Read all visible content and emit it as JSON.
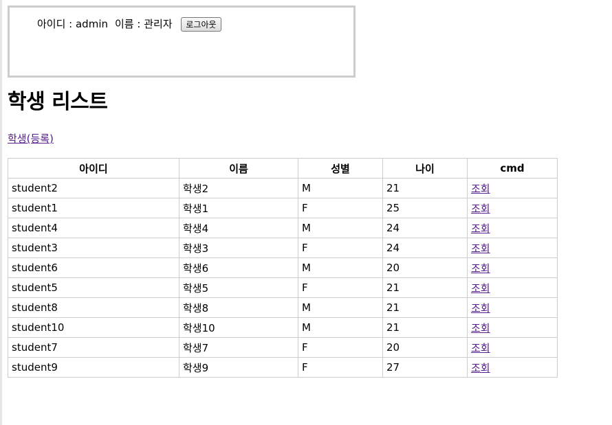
{
  "header": {
    "id_label": "아이디 : admin",
    "name_label": "이름 : 관리자",
    "logout_label": "로그아웃"
  },
  "page_title": "학생 리스트",
  "register_link": "학생(등록)",
  "table": {
    "columns": [
      "아이디",
      "이름",
      "성별",
      "나이",
      "cmd"
    ],
    "rows": [
      {
        "id": "student2",
        "name": "학생2",
        "gender": "M",
        "age": "21",
        "cmd": "조회"
      },
      {
        "id": "student1",
        "name": "학생1",
        "gender": "F",
        "age": "25",
        "cmd": "조회"
      },
      {
        "id": "student4",
        "name": "학생4",
        "gender": "M",
        "age": "24",
        "cmd": "조회"
      },
      {
        "id": "student3",
        "name": "학생3",
        "gender": "F",
        "age": "24",
        "cmd": "조회"
      },
      {
        "id": "student6",
        "name": "학생6",
        "gender": "M",
        "age": "20",
        "cmd": "조회"
      },
      {
        "id": "student5",
        "name": "학생5",
        "gender": "F",
        "age": "21",
        "cmd": "조회"
      },
      {
        "id": "student8",
        "name": "학생8",
        "gender": "M",
        "age": "21",
        "cmd": "조회"
      },
      {
        "id": "student10",
        "name": "학생10",
        "gender": "M",
        "age": "21",
        "cmd": "조회"
      },
      {
        "id": "student7",
        "name": "학생7",
        "gender": "F",
        "age": "20",
        "cmd": "조회"
      },
      {
        "id": "student9",
        "name": "학생9",
        "gender": "F",
        "age": "27",
        "cmd": "조회"
      }
    ]
  },
  "colors": {
    "link": "#551a8b",
    "border": "#cccccc",
    "header_box_border": "#cccccc"
  }
}
